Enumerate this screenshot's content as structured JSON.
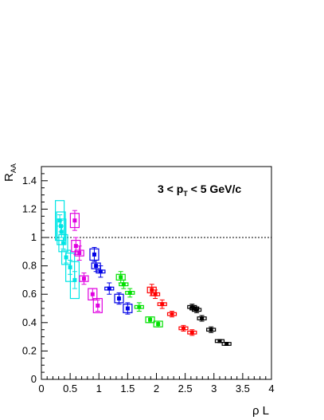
{
  "chart_data": {
    "type": "scatter",
    "title": "",
    "xlabel": {
      "main": "ρ L",
      "sub": ""
    },
    "ylabel": {
      "main": "R",
      "sub": "AA"
    },
    "xlim": [
      0,
      4
    ],
    "ylim": [
      0,
      1.5
    ],
    "x_ticks": [
      "0",
      "0.5",
      "1",
      "1.5",
      "2",
      "2.5",
      "3",
      "3.5",
      "4"
    ],
    "y_ticks": [
      "0",
      "0.2",
      "0.4",
      "0.6",
      "0.8",
      "1",
      "1.2",
      "1.4"
    ],
    "x_tick_values": [
      0,
      0.5,
      1,
      1.5,
      2,
      2.5,
      3,
      3.5,
      4
    ],
    "y_tick_values": [
      0,
      0.2,
      0.4,
      0.6,
      0.8,
      1,
      1.2,
      1.4
    ],
    "reference_line": {
      "y": 1.0,
      "style": "dotted"
    },
    "annotation": {
      "pre": "3 < p",
      "sub": "T",
      "post": " < 5 GeV/c"
    },
    "grid": false,
    "series": [
      {
        "color": "#00e5e5",
        "points": [
          {
            "x": 0.32,
            "y": 1.12,
            "err": 0.04,
            "sys": 0.14
          },
          {
            "x": 0.34,
            "y": 1.08,
            "err": 0.04,
            "sys": 0.1
          },
          {
            "x": 0.35,
            "y": 1.04,
            "err": 0.04,
            "sys": 0.09
          },
          {
            "x": 0.38,
            "y": 0.96,
            "err": 0.04,
            "sys": 0.06
          },
          {
            "x": 0.43,
            "y": 0.86,
            "err": 0.04,
            "sys": 0.05
          },
          {
            "x": 0.5,
            "y": 0.79,
            "err": 0.05,
            "sys": 0.1
          },
          {
            "x": 0.58,
            "y": 0.7,
            "err": 0.06,
            "sys": 0.13
          }
        ]
      },
      {
        "color": "#e000e0",
        "points": [
          {
            "x": 0.58,
            "y": 1.12,
            "err": 0.07,
            "sys": 0.05
          },
          {
            "x": 0.6,
            "y": 0.94,
            "err": 0.06,
            "sys": 0.04
          },
          {
            "x": 0.66,
            "y": 0.89,
            "err": 0.05,
            "sys": 0.02
          },
          {
            "x": 0.74,
            "y": 0.71,
            "err": 0.04,
            "sys": 0.02
          },
          {
            "x": 0.89,
            "y": 0.6,
            "err": 0.04,
            "sys": 0.04
          },
          {
            "x": 0.98,
            "y": 0.52,
            "err": 0.04,
            "sys": 0.05
          }
        ]
      },
      {
        "color": "#0000e5",
        "points": [
          {
            "x": 0.92,
            "y": 0.88,
            "err": 0.05,
            "sys": 0.04
          },
          {
            "x": 0.95,
            "y": 0.8,
            "err": 0.04,
            "sys": 0.02
          },
          {
            "x": 1.03,
            "y": 0.76,
            "err": 0.04,
            "sys": 0.01
          },
          {
            "x": 1.18,
            "y": 0.64,
            "err": 0.04,
            "sys": 0.01
          },
          {
            "x": 1.35,
            "y": 0.57,
            "err": 0.04,
            "sys": 0.03
          },
          {
            "x": 1.5,
            "y": 0.5,
            "err": 0.04,
            "sys": 0.03
          }
        ]
      },
      {
        "color": "#00e000",
        "points": [
          {
            "x": 1.38,
            "y": 0.72,
            "err": 0.04,
            "sys": 0.02
          },
          {
            "x": 1.43,
            "y": 0.67,
            "err": 0.03,
            "sys": 0.01
          },
          {
            "x": 1.54,
            "y": 0.61,
            "err": 0.03,
            "sys": 0.01
          },
          {
            "x": 1.7,
            "y": 0.51,
            "err": 0.03,
            "sys": 0.01
          },
          {
            "x": 1.89,
            "y": 0.42,
            "err": 0.02,
            "sys": 0.02
          },
          {
            "x": 2.03,
            "y": 0.39,
            "err": 0.02,
            "sys": 0.02
          }
        ]
      },
      {
        "color": "#ff0000",
        "points": [
          {
            "x": 1.92,
            "y": 0.63,
            "err": 0.04,
            "sys": 0.02
          },
          {
            "x": 1.98,
            "y": 0.6,
            "err": 0.03,
            "sys": 0.01
          },
          {
            "x": 2.1,
            "y": 0.53,
            "err": 0.03,
            "sys": 0.01
          },
          {
            "x": 2.27,
            "y": 0.46,
            "err": 0.02,
            "sys": 0.01
          },
          {
            "x": 2.47,
            "y": 0.36,
            "err": 0.02,
            "sys": 0.01
          },
          {
            "x": 2.62,
            "y": 0.33,
            "err": 0.02,
            "sys": 0.01
          }
        ]
      },
      {
        "color": "#000000",
        "points": [
          {
            "x": 2.62,
            "y": 0.51,
            "err": 0.02,
            "sys": 0.01
          },
          {
            "x": 2.66,
            "y": 0.5,
            "err": 0.02,
            "sys": 0.01
          },
          {
            "x": 2.7,
            "y": 0.49,
            "err": 0.02,
            "sys": 0.01
          },
          {
            "x": 2.79,
            "y": 0.43,
            "err": 0.02,
            "sys": 0.01
          },
          {
            "x": 2.95,
            "y": 0.35,
            "err": 0.02,
            "sys": 0.01
          },
          {
            "x": 3.1,
            "y": 0.27,
            "err": 0.01,
            "sys": 0.01
          },
          {
            "x": 3.22,
            "y": 0.25,
            "err": 0.01,
            "sys": 0.01
          }
        ]
      }
    ]
  }
}
